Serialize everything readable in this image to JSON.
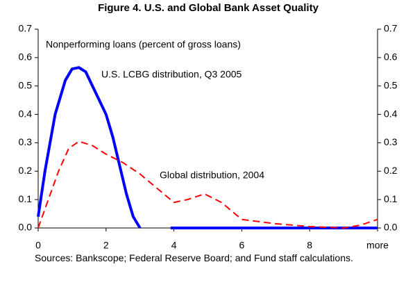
{
  "chart_data": {
    "type": "line",
    "title": "Figure 4. U.S. and Global Bank Asset Quality",
    "subtitle": "Nonperforming loans (percent of gross loans)",
    "xlim": [
      0,
      10
    ],
    "xticks": [
      0,
      2,
      4,
      6,
      8,
      {
        "value": 10,
        "label": "more"
      }
    ],
    "ylim": [
      0,
      0.7
    ],
    "yticks": [
      {
        "value": 0,
        "label": "0.0"
      },
      0.1,
      0.2,
      0.3,
      0.4,
      0.5,
      0.6,
      0.7
    ],
    "y2lim": [
      0,
      0.7
    ],
    "y2ticks": [
      {
        "value": 0,
        "label": "0.0"
      },
      0.1,
      0.2,
      0.3,
      0.4,
      0.5,
      0.6,
      0.7
    ],
    "series": [
      {
        "name": "U.S. LCBG distribution, Q3 2005",
        "color": "#0000ff",
        "dash": false,
        "x": [
          0,
          0.2,
          0.5,
          0.8,
          1.0,
          1.2,
          1.4,
          1.6,
          1.8,
          2.0,
          2.2,
          2.4,
          2.6,
          2.8,
          3.0,
          3.5,
          3.9,
          10
        ],
        "values": [
          0.04,
          0.2,
          0.4,
          0.52,
          0.56,
          0.565,
          0.55,
          0.5,
          0.45,
          0.4,
          0.32,
          0.22,
          0.12,
          0.04,
          0,
          null,
          0,
          0
        ]
      },
      {
        "name": "Global distribution, 2004",
        "color": "#ff0000",
        "dash": true,
        "x": [
          0,
          0.3,
          0.6,
          0.9,
          1.2,
          1.6,
          2,
          2.5,
          3,
          3.5,
          4,
          4.4,
          4.9,
          5.4,
          6,
          7,
          8,
          9,
          9.5,
          10
        ],
        "values": [
          0,
          0.1,
          0.2,
          0.28,
          0.305,
          0.29,
          0.26,
          0.23,
          0.19,
          0.14,
          0.09,
          0.1,
          0.12,
          0.09,
          0.03,
          0.015,
          0.005,
          0,
          0.01,
          0.03
        ]
      }
    ],
    "source": "Sources: Bankscope; Federal Reserve Board; and Fund staff calculations."
  }
}
